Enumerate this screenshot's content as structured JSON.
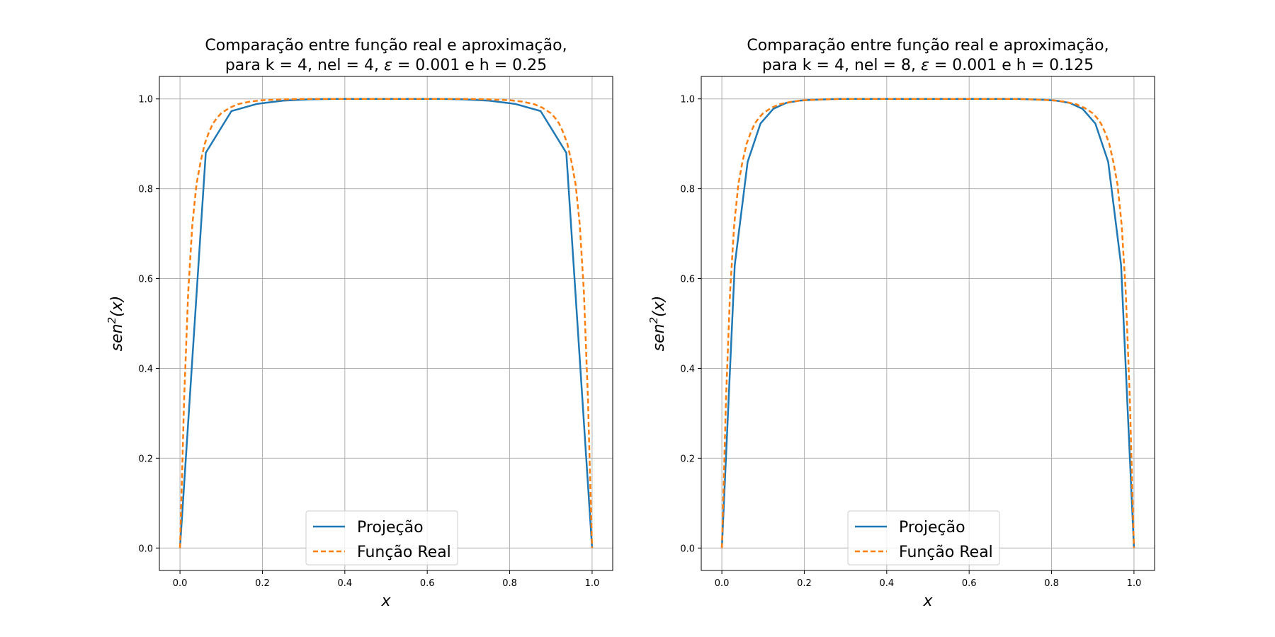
{
  "chart_data": [
    {
      "type": "line",
      "title_line1": "Comparação entre função real e aproximação,",
      "title_line2_pre": "para k = 4, nel = 4, ",
      "title_line2_eps": "ε",
      "title_line2_post": " = 0.001 e h = 0.25",
      "xlabel": "x",
      "ylabel_base": "sen",
      "ylabel_sup": "2",
      "ylabel_tail": "(x)",
      "xlim": [
        -0.05,
        1.05
      ],
      "ylim": [
        -0.05,
        1.05
      ],
      "xticks": [
        "0.0",
        "0.2",
        "0.4",
        "0.6",
        "0.8",
        "1.0"
      ],
      "yticks": [
        "0.0",
        "0.2",
        "0.4",
        "0.6",
        "0.8",
        "1.0"
      ],
      "grid": true,
      "legend_position": "lower center",
      "series": [
        {
          "name": "Projeção",
          "color": "#1f77b4",
          "style": "solid",
          "x": [
            0,
            0.0625,
            0.125,
            0.1875,
            0.25,
            0.3125,
            0.375,
            0.4375,
            0.5,
            0.5625,
            0.625,
            0.6875,
            0.75,
            0.8125,
            0.875,
            0.9375,
            1.0
          ],
          "y": [
            0.0,
            0.88,
            0.973,
            0.989,
            0.996,
            0.999,
            1.0,
            1.0,
            1.0,
            1.0,
            1.0,
            0.999,
            0.996,
            0.989,
            0.973,
            0.88,
            0.0
          ]
        },
        {
          "name": "Função Real",
          "color": "#ff7f0e",
          "style": "dashed",
          "x": [
            0,
            0.005,
            0.01,
            0.02,
            0.03,
            0.04,
            0.05,
            0.06,
            0.07,
            0.08,
            0.09,
            0.1,
            0.12,
            0.14,
            0.17,
            0.2,
            0.25,
            0.3,
            0.4,
            0.5,
            0.6,
            0.7,
            0.75,
            0.8,
            0.83,
            0.86,
            0.88,
            0.9,
            0.91,
            0.92,
            0.93,
            0.94,
            0.95,
            0.96,
            0.97,
            0.98,
            0.99,
            0.995,
            1.0
          ],
          "y": [
            0.0,
            0.16,
            0.33,
            0.57,
            0.72,
            0.81,
            0.86,
            0.9,
            0.925,
            0.945,
            0.958,
            0.968,
            0.98,
            0.988,
            0.994,
            0.997,
            0.999,
            1.0,
            1.0,
            1.0,
            1.0,
            1.0,
            0.999,
            0.997,
            0.994,
            0.988,
            0.98,
            0.968,
            0.958,
            0.945,
            0.925,
            0.9,
            0.86,
            0.81,
            0.72,
            0.57,
            0.33,
            0.16,
            0.0
          ]
        }
      ]
    },
    {
      "type": "line",
      "title_line1": "Comparação entre função real e aproximação,",
      "title_line2_pre": "para k = 4, nel = 8, ",
      "title_line2_eps": "ε",
      "title_line2_post": " = 0.001 e h = 0.125",
      "xlabel": "x",
      "ylabel_base": "sen",
      "ylabel_sup": "2",
      "ylabel_tail": "(x)",
      "xlim": [
        -0.05,
        1.05
      ],
      "ylim": [
        -0.05,
        1.05
      ],
      "xticks": [
        "0.0",
        "0.2",
        "0.4",
        "0.6",
        "0.8",
        "1.0"
      ],
      "yticks": [
        "0.0",
        "0.2",
        "0.4",
        "0.6",
        "0.8",
        "1.0"
      ],
      "grid": true,
      "legend_position": "lower center",
      "series": [
        {
          "name": "Projeção",
          "color": "#1f77b4",
          "style": "solid",
          "x": [
            0,
            0.03125,
            0.0625,
            0.09375,
            0.125,
            0.15625,
            0.1875,
            0.21875,
            0.25,
            0.28125,
            0.3125,
            0.34375,
            0.375,
            0.40625,
            0.4375,
            0.46875,
            0.5,
            0.53125,
            0.5625,
            0.59375,
            0.625,
            0.65625,
            0.6875,
            0.71875,
            0.75,
            0.78125,
            0.8125,
            0.84375,
            0.875,
            0.90625,
            0.9375,
            0.96875,
            1.0
          ],
          "y": [
            0.0,
            0.63,
            0.86,
            0.945,
            0.978,
            0.991,
            0.996,
            0.998,
            0.999,
            1.0,
            1.0,
            1.0,
            1.0,
            1.0,
            1.0,
            1.0,
            1.0,
            1.0,
            1.0,
            1.0,
            1.0,
            1.0,
            1.0,
            1.0,
            0.999,
            0.998,
            0.996,
            0.991,
            0.978,
            0.945,
            0.86,
            0.63,
            0.0
          ]
        },
        {
          "name": "Função Real",
          "color": "#ff7f0e",
          "style": "dashed",
          "x": [
            0,
            0.005,
            0.01,
            0.02,
            0.03,
            0.04,
            0.05,
            0.06,
            0.07,
            0.08,
            0.09,
            0.1,
            0.12,
            0.14,
            0.17,
            0.2,
            0.25,
            0.3,
            0.4,
            0.5,
            0.6,
            0.7,
            0.75,
            0.8,
            0.83,
            0.86,
            0.88,
            0.9,
            0.91,
            0.92,
            0.93,
            0.94,
            0.95,
            0.96,
            0.97,
            0.98,
            0.99,
            0.995,
            1.0
          ],
          "y": [
            0.0,
            0.16,
            0.33,
            0.57,
            0.72,
            0.81,
            0.86,
            0.9,
            0.925,
            0.945,
            0.958,
            0.968,
            0.98,
            0.988,
            0.994,
            0.997,
            0.999,
            1.0,
            1.0,
            1.0,
            1.0,
            1.0,
            0.999,
            0.997,
            0.994,
            0.988,
            0.98,
            0.968,
            0.958,
            0.945,
            0.925,
            0.9,
            0.86,
            0.81,
            0.72,
            0.57,
            0.33,
            0.16,
            0.0
          ]
        }
      ]
    }
  ]
}
